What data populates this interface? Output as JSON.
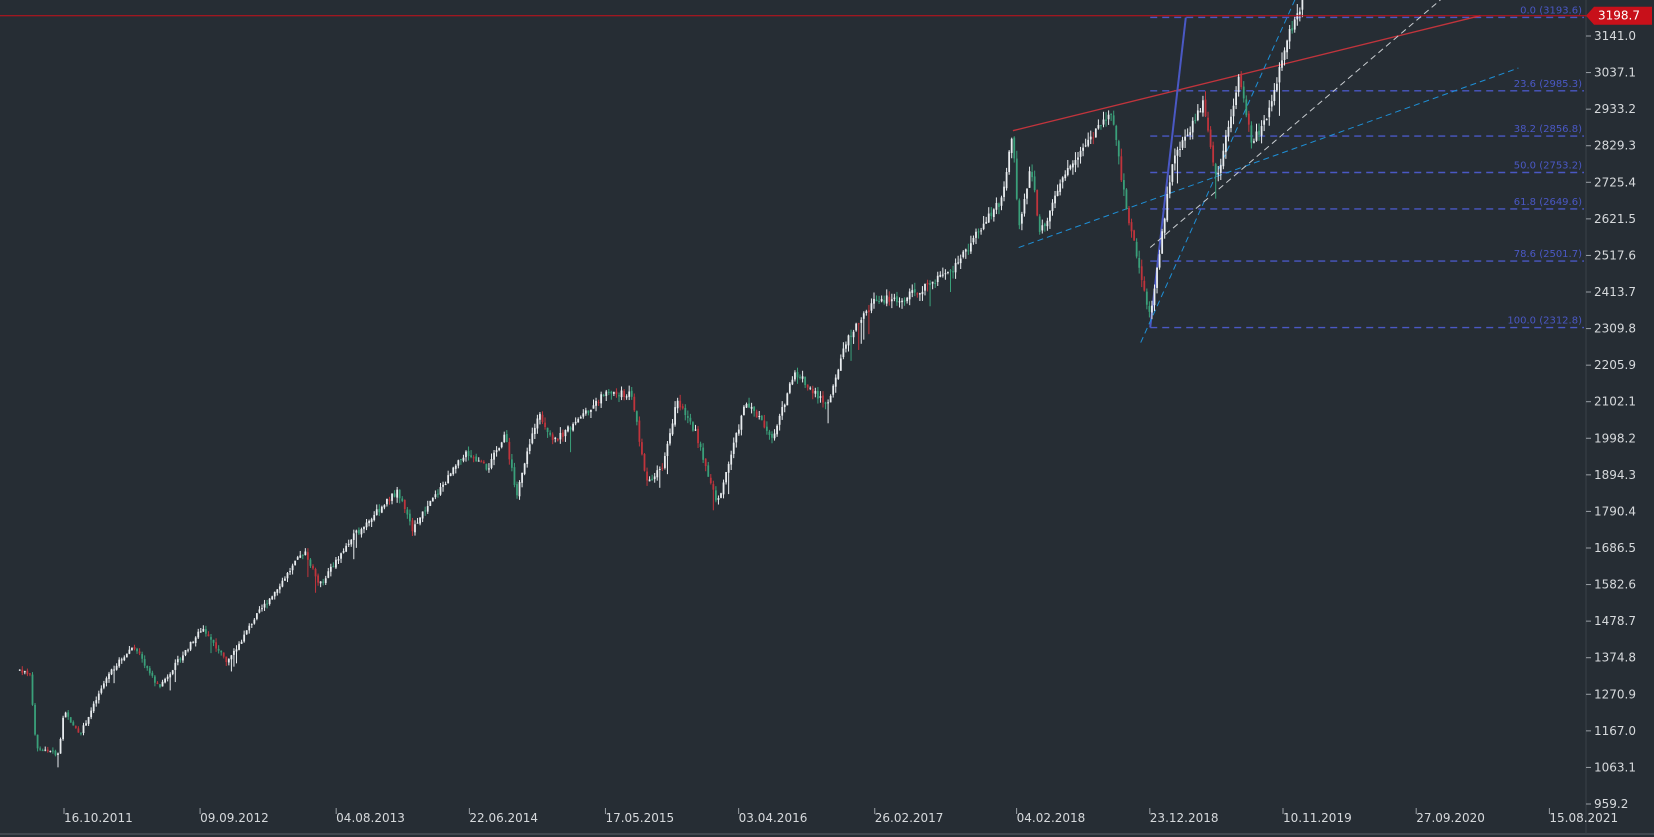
{
  "chart_data": {
    "type": "candlestick",
    "y_axis": {
      "ticks": [
        "3141.0",
        "3037.1",
        "2933.2",
        "2829.3",
        "2725.4",
        "2621.5",
        "2517.6",
        "2413.7",
        "2309.8",
        "2205.9",
        "2102.1",
        "1998.2",
        "1894.3",
        "1790.4",
        "1686.5",
        "1582.6",
        "1478.7",
        "1374.8",
        "1270.9",
        "1167.0",
        "1063.1",
        "959.2"
      ],
      "range": [
        959.2,
        3198.7
      ]
    },
    "x_axis": {
      "ticks": [
        "16.10.2011",
        "09.09.2012",
        "04.08.2013",
        "22.06.2014",
        "17.05.2015",
        "03.04.2016",
        "26.02.2017",
        "04.02.2018",
        "23.12.2018",
        "10.11.2019",
        "27.09.2020",
        "15.08.2021"
      ]
    },
    "last_price": {
      "value": 3198.7,
      "label": "3198.7",
      "color": "#c8101a"
    },
    "fibonacci": {
      "color": "#4a58c4",
      "levels": [
        {
          "ratio": 0.0,
          "price": 3193.6,
          "label": "0.0 (3193.6)"
        },
        {
          "ratio": 23.6,
          "price": 2985.3,
          "label": "23.6 (2985.3)"
        },
        {
          "ratio": 38.2,
          "price": 2856.8,
          "label": "38.2 (2856.8)"
        },
        {
          "ratio": 50.0,
          "price": 2753.2,
          "label": "50.0 (2753.2)"
        },
        {
          "ratio": 61.8,
          "price": 2649.6,
          "label": "61.8 (2649.6)"
        },
        {
          "ratio": 78.6,
          "price": 2501.7,
          "label": "78.6 (2501.7)"
        },
        {
          "ratio": 100.0,
          "price": 2312.8,
          "label": "100.0 (2312.8)"
        }
      ]
    },
    "series_path": [
      {
        "date": "2011-07-01",
        "price": 1340
      },
      {
        "date": "2011-07-25",
        "price": 1330
      },
      {
        "date": "2011-08-10",
        "price": 1120
      },
      {
        "date": "2011-10-03",
        "price": 1100
      },
      {
        "date": "2011-10-16",
        "price": 1220
      },
      {
        "date": "2011-11-25",
        "price": 1160
      },
      {
        "date": "2012-02-01",
        "price": 1330
      },
      {
        "date": "2012-04-01",
        "price": 1410
      },
      {
        "date": "2012-06-01",
        "price": 1290
      },
      {
        "date": "2012-09-15",
        "price": 1460
      },
      {
        "date": "2012-11-15",
        "price": 1360
      },
      {
        "date": "2013-01-15",
        "price": 1480
      },
      {
        "date": "2013-05-20",
        "price": 1680
      },
      {
        "date": "2013-06-25",
        "price": 1580
      },
      {
        "date": "2013-09-15",
        "price": 1720
      },
      {
        "date": "2013-12-31",
        "price": 1850
      },
      {
        "date": "2014-02-03",
        "price": 1740
      },
      {
        "date": "2014-06-15",
        "price": 1960
      },
      {
        "date": "2014-08-05",
        "price": 1910
      },
      {
        "date": "2014-09-15",
        "price": 2010
      },
      {
        "date": "2014-10-15",
        "price": 1840
      },
      {
        "date": "2014-12-05",
        "price": 2070
      },
      {
        "date": "2015-01-15",
        "price": 1990
      },
      {
        "date": "2015-05-20",
        "price": 2130
      },
      {
        "date": "2015-07-20",
        "price": 2120
      },
      {
        "date": "2015-08-25",
        "price": 1870
      },
      {
        "date": "2015-10-01",
        "price": 1920
      },
      {
        "date": "2015-11-05",
        "price": 2100
      },
      {
        "date": "2015-12-20",
        "price": 2020
      },
      {
        "date": "2016-02-11",
        "price": 1810
      },
      {
        "date": "2016-04-20",
        "price": 2100
      },
      {
        "date": "2016-06-27",
        "price": 2000
      },
      {
        "date": "2016-08-15",
        "price": 2190
      },
      {
        "date": "2016-11-04",
        "price": 2090
      },
      {
        "date": "2016-12-15",
        "price": 2270
      },
      {
        "date": "2017-03-01",
        "price": 2395
      },
      {
        "date": "2017-05-01",
        "price": 2390
      },
      {
        "date": "2017-09-01",
        "price": 2475
      },
      {
        "date": "2017-12-31",
        "price": 2680
      },
      {
        "date": "2018-01-26",
        "price": 2872
      },
      {
        "date": "2018-02-09",
        "price": 2581
      },
      {
        "date": "2018-03-10",
        "price": 2780
      },
      {
        "date": "2018-04-02",
        "price": 2580
      },
      {
        "date": "2018-06-15",
        "price": 2780
      },
      {
        "date": "2018-09-20",
        "price": 2930
      },
      {
        "date": "2018-10-29",
        "price": 2640
      },
      {
        "date": "2018-12-24",
        "price": 2346
      },
      {
        "date": "2019-02-15",
        "price": 2780
      },
      {
        "date": "2019-04-30",
        "price": 2950
      },
      {
        "date": "2019-06-03",
        "price": 2730
      },
      {
        "date": "2019-07-26",
        "price": 3025
      },
      {
        "date": "2019-08-26",
        "price": 2840
      },
      {
        "date": "2019-10-03",
        "price": 2900
      },
      {
        "date": "2019-11-15",
        "price": 3120
      },
      {
        "date": "2019-12-27",
        "price": 3240
      }
    ]
  }
}
